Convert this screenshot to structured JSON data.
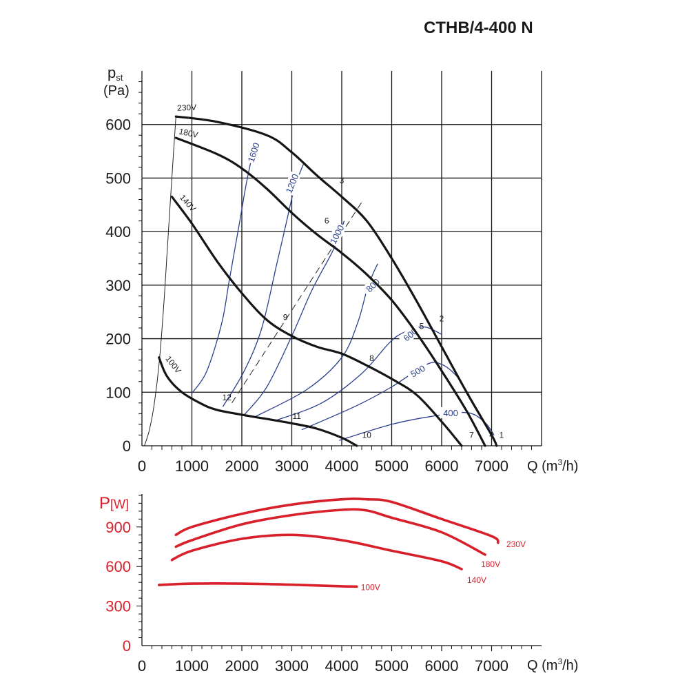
{
  "title": "CTHB/4-400 N",
  "chart_data": [
    {
      "type": "line",
      "title": "CTHB/4-400 N",
      "ylabel_main": "p",
      "ylabel_sub": "st",
      "ylabel_unit": "(Pa)",
      "xlabel_main": "Q (m",
      "xlabel_sup": "3",
      "xlabel_end": "/h)",
      "xlim": [
        0,
        8000
      ],
      "ylim": [
        0,
        700
      ],
      "grid": true,
      "x_ticks": [
        0,
        1000,
        2000,
        3000,
        4000,
        5000,
        6000,
        7000
      ],
      "y_ticks": [
        0,
        100,
        200,
        300,
        400,
        500,
        600
      ],
      "series": [
        {
          "name": "230V",
          "points": [
            [
              680,
              615
            ],
            [
              1500,
              605
            ],
            [
              2500,
              580
            ],
            [
              3000,
              548
            ],
            [
              3500,
              505
            ],
            [
              4000,
              465
            ],
            [
              4500,
              420
            ],
            [
              5000,
              350
            ],
            [
              5500,
              270
            ],
            [
              6000,
              185
            ],
            [
              6500,
              100
            ],
            [
              7000,
              20
            ],
            [
              7100,
              0
            ]
          ]
        },
        {
          "name": "180V",
          "points": [
            [
              680,
              575
            ],
            [
              1500,
              545
            ],
            [
              2000,
              518
            ],
            [
              2500,
              480
            ],
            [
              3000,
              435
            ],
            [
              3500,
              395
            ],
            [
              4000,
              360
            ],
            [
              4500,
              320
            ],
            [
              5000,
              272
            ],
            [
              5500,
              210
            ],
            [
              6000,
              140
            ],
            [
              6500,
              65
            ],
            [
              6870,
              0
            ]
          ]
        },
        {
          "name": "140V",
          "points": [
            [
              600,
              465
            ],
            [
              1000,
              415
            ],
            [
              1500,
              345
            ],
            [
              2000,
              285
            ],
            [
              2500,
              235
            ],
            [
              3000,
              205
            ],
            [
              3500,
              185
            ],
            [
              4000,
              172
            ],
            [
              4500,
              150
            ],
            [
              5000,
              125
            ],
            [
              5500,
              95
            ],
            [
              6000,
              45
            ],
            [
              6400,
              0
            ]
          ]
        },
        {
          "name": "100V",
          "points": [
            [
              340,
              165
            ],
            [
              500,
              130
            ],
            [
              800,
              100
            ],
            [
              1200,
              78
            ],
            [
              1500,
              67
            ],
            [
              2000,
              58
            ],
            [
              2500,
              50
            ],
            [
              3000,
              42
            ],
            [
              3500,
              32
            ],
            [
              4000,
              15
            ],
            [
              4300,
              0
            ]
          ]
        }
      ],
      "rpm_curves": [
        {
          "label": "1600",
          "label_at": [
            2230,
            548
          ],
          "label_angle": -72,
          "points": [
            [
              1000,
              98
            ],
            [
              1300,
              140
            ],
            [
              1600,
              230
            ],
            [
              1750,
              310
            ],
            [
              1960,
              420
            ],
            [
              2100,
              495
            ],
            [
              2250,
              560
            ]
          ]
        },
        {
          "label": "1200",
          "label_at": [
            3000,
            490
          ],
          "label_angle": -68,
          "points": [
            [
              1620,
              73
            ],
            [
              2050,
              140
            ],
            [
              2400,
              220
            ],
            [
              2700,
              340
            ],
            [
              2850,
              400
            ],
            [
              3050,
              480
            ],
            [
              3250,
              530
            ]
          ]
        },
        {
          "label": "1000",
          "label_at": [
            3900,
            395
          ],
          "label_angle": -62,
          "points": [
            [
              2050,
              58
            ],
            [
              2500,
              110
            ],
            [
              3000,
              205
            ],
            [
              3400,
              290
            ],
            [
              3800,
              360
            ],
            [
              3930,
              390
            ],
            [
              4050,
              420
            ]
          ]
        },
        {
          "label": "800",
          "label_at": [
            4620,
            300
          ],
          "label_angle": -45,
          "points": [
            [
              2280,
              55
            ],
            [
              3300,
              105
            ],
            [
              4000,
              165
            ],
            [
              4320,
              230
            ],
            [
              4500,
              290
            ],
            [
              4620,
              320
            ],
            [
              4720,
              340
            ]
          ]
        },
        {
          "label": "600",
          "label_at": [
            5370,
            208
          ],
          "label_angle": -40,
          "points": [
            [
              2700,
              48
            ],
            [
              3600,
              80
            ],
            [
              4400,
              135
            ],
            [
              4950,
              192
            ],
            [
              5250,
              212
            ],
            [
              5650,
              222
            ],
            [
              6000,
              208
            ]
          ]
        },
        {
          "label": "500",
          "label_at": [
            5520,
            140
          ],
          "label_angle": -30,
          "points": [
            [
              3200,
              30
            ],
            [
              4300,
              75
            ],
            [
              5000,
              110
            ],
            [
              5700,
              152
            ],
            [
              6000,
              152
            ],
            [
              6300,
              130
            ],
            [
              6550,
              95
            ]
          ]
        },
        {
          "label": "400",
          "label_at": [
            6180,
            62
          ],
          "label_angle": 0,
          "points": [
            [
              3950,
              10
            ],
            [
              5000,
              40
            ],
            [
              5800,
              55
            ],
            [
              6500,
              62
            ],
            [
              6850,
              45
            ],
            [
              7050,
              20
            ]
          ]
        }
      ],
      "op_points": [
        {
          "label": "1",
          "x": 7200,
          "y": 15
        },
        {
          "label": "2",
          "x": 6000,
          "y": 232
        },
        {
          "label": "3",
          "x": 4000,
          "y": 490
        },
        {
          "label": "4",
          "x": 7000,
          "y": 15
        },
        {
          "label": "5",
          "x": 5600,
          "y": 218
        },
        {
          "label": "6",
          "x": 3700,
          "y": 415
        },
        {
          "label": "7",
          "x": 6600,
          "y": 15
        },
        {
          "label": "8",
          "x": 4600,
          "y": 158
        },
        {
          "label": "9",
          "x": 2870,
          "y": 235
        },
        {
          "label": "10",
          "x": 4500,
          "y": 15
        },
        {
          "label": "11",
          "x": 3100,
          "y": 50
        },
        {
          "label": "12",
          "x": 1700,
          "y": 85
        }
      ]
    },
    {
      "type": "line",
      "ylabel": "P",
      "ylabel_unit": "[W]",
      "xlabel_main": "Q (m",
      "xlabel_sup": "3",
      "xlabel_end": "/h)",
      "xlim": [
        0,
        8000
      ],
      "ylim": [
        0,
        1150
      ],
      "color": "#d8202a",
      "x_ticks": [
        0,
        1000,
        2000,
        3000,
        4000,
        5000,
        6000,
        7000
      ],
      "y_ticks": [
        0,
        300,
        600,
        900
      ],
      "series": [
        {
          "name": "230V",
          "points": [
            [
              680,
              840
            ],
            [
              1000,
              900
            ],
            [
              2000,
              1000
            ],
            [
              3000,
              1070
            ],
            [
              4000,
              1110
            ],
            [
              4500,
              1110
            ],
            [
              5000,
              1090
            ],
            [
              6000,
              960
            ],
            [
              7000,
              830
            ],
            [
              7130,
              780
            ]
          ]
        },
        {
          "name": "180V",
          "points": [
            [
              680,
              750
            ],
            [
              1000,
              800
            ],
            [
              2000,
              920
            ],
            [
              3000,
              990
            ],
            [
              4000,
              1030
            ],
            [
              4500,
              1025
            ],
            [
              5000,
              970
            ],
            [
              6000,
              860
            ],
            [
              6870,
              690
            ]
          ]
        },
        {
          "name": "140V",
          "points": [
            [
              600,
              650
            ],
            [
              1000,
              720
            ],
            [
              2000,
              810
            ],
            [
              3000,
              840
            ],
            [
              4000,
              800
            ],
            [
              5000,
              720
            ],
            [
              6000,
              640
            ],
            [
              6400,
              580
            ]
          ]
        },
        {
          "name": "100V",
          "points": [
            [
              340,
              460
            ],
            [
              1000,
              470
            ],
            [
              2000,
              470
            ],
            [
              3000,
              462
            ],
            [
              4000,
              450
            ],
            [
              4300,
              448
            ]
          ]
        }
      ]
    }
  ]
}
